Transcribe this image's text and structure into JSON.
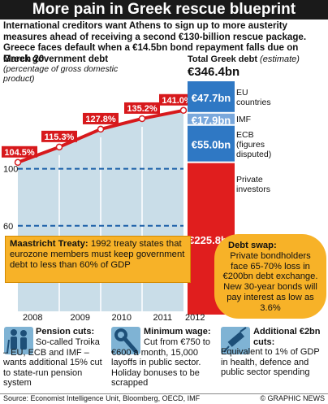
{
  "title": "More pain in Greek rescue blueprint",
  "subtitle": "International creditors want Athens to sign up to more austerity measures ahead of receiving a second €130-billion rescue package. Greece faces default when a €14.5bn bond repayment falls due on March 20",
  "left_header": {
    "title": "Greek government debt",
    "subtitle": "(percentage of gross domestic product)"
  },
  "right_header": {
    "title": "Total Greek debt",
    "note": "(estimate)",
    "total": "€346.4bn"
  },
  "chart_data": [
    {
      "type": "line",
      "x": [
        "2008",
        "2009",
        "2010",
        "2011",
        "2012"
      ],
      "values": [
        104.5,
        115.3,
        127.8,
        135.2,
        141.0
      ],
      "value_labels": [
        "104.5%",
        "115.3%",
        "127.8%",
        "135.2%",
        "141.0%"
      ],
      "xlabel": "",
      "ylabel": "",
      "yticks": [
        "100",
        "60"
      ],
      "ylim": [
        0,
        150
      ],
      "reference_lines": [
        100,
        60
      ],
      "grid": true,
      "colors": {
        "line": "#d7191c",
        "marker_fill": "#ffffff",
        "area": "#c9dde8",
        "ref_line": "#1a5fa8"
      }
    },
    {
      "type": "bar",
      "title": "Total Greek debt",
      "categories": [
        "EU countries",
        "IMF",
        "ECB (figures disputed)",
        "Private investors"
      ],
      "category_labels": [
        [
          "EU",
          "countries"
        ],
        [
          "IMF"
        ],
        [
          "ECB",
          "(figures",
          "disputed)"
        ],
        [
          "Private",
          "investors"
        ]
      ],
      "values": [
        47.7,
        17.9,
        55.0,
        225.8
      ],
      "value_labels": [
        "€47.7bn",
        "€17.9bn",
        "€55.0bn",
        "€225.8bn"
      ],
      "total": 346.4,
      "colors": [
        "#2f78c4",
        "#7aa8dc",
        "#2f78c4",
        "#e01e1e"
      ]
    }
  ],
  "maastricht": {
    "heading": "Maastricht Treaty:",
    "text": "1992 treaty states that eurozone members must keep government debt to less than 60% of GDP"
  },
  "debt_swap": {
    "heading": "Debt swap:",
    "text": "Private bondholders face 65-70% loss in €200bn debt exchange. New 30-year bonds will pay interest as low as 3.6%"
  },
  "panels": [
    {
      "heading": "Pension cuts:",
      "text": "So-called Troika – EU, ECB and IMF – wants additional 15% cut to state-run pension system",
      "icon": "elderly-couple-icon"
    },
    {
      "heading": "Minimum wage:",
      "text": "Cut from €750 to €600 a month, 15,000 layoffs in public sector. Holiday bonuses to be scrapped",
      "icon": "wrench-icon"
    },
    {
      "heading": "Additional €2bn cuts:",
      "text": "Equivalent to 1% of GDP in health, defence and public sector spending",
      "icon": "syringe-icon"
    }
  ],
  "source": "Source: Economist Intelligence Unit, Bloomberg, OECD, IMF",
  "credit": "© GRAPHIC NEWS"
}
